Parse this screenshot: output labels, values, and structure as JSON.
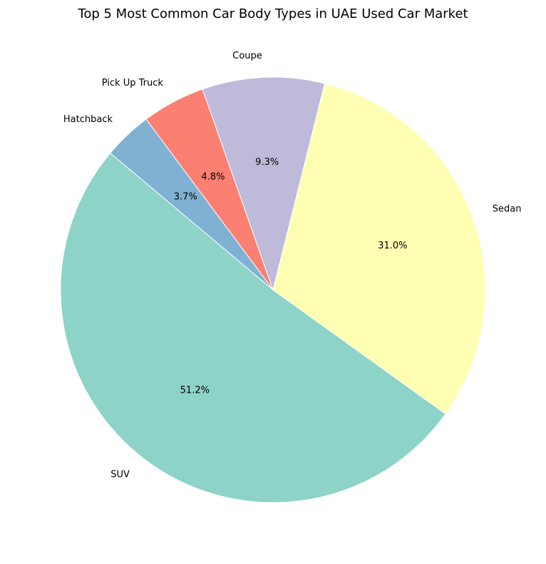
{
  "chart_data": {
    "type": "pie",
    "title": "Top 5 Most Common Car Body Types in UAE Used Car Market",
    "slices": [
      {
        "label": "SUV",
        "value": 51.2,
        "pct_label": "51.2%",
        "color": "#8dd3c7"
      },
      {
        "label": "Sedan",
        "value": 31.0,
        "pct_label": "31.0%",
        "color": "#ffffb3"
      },
      {
        "label": "Coupe",
        "value": 9.3,
        "pct_label": "9.3%",
        "color": "#bebada"
      },
      {
        "label": "Pick Up Truck",
        "value": 4.8,
        "pct_label": "4.8%",
        "color": "#fb8072"
      },
      {
        "label": "Hatchback",
        "value": 3.7,
        "pct_label": "3.7%",
        "color": "#80b1d3"
      }
    ],
    "start_angle_deg": 140,
    "direction": "counterclockwise",
    "legend": "none"
  }
}
